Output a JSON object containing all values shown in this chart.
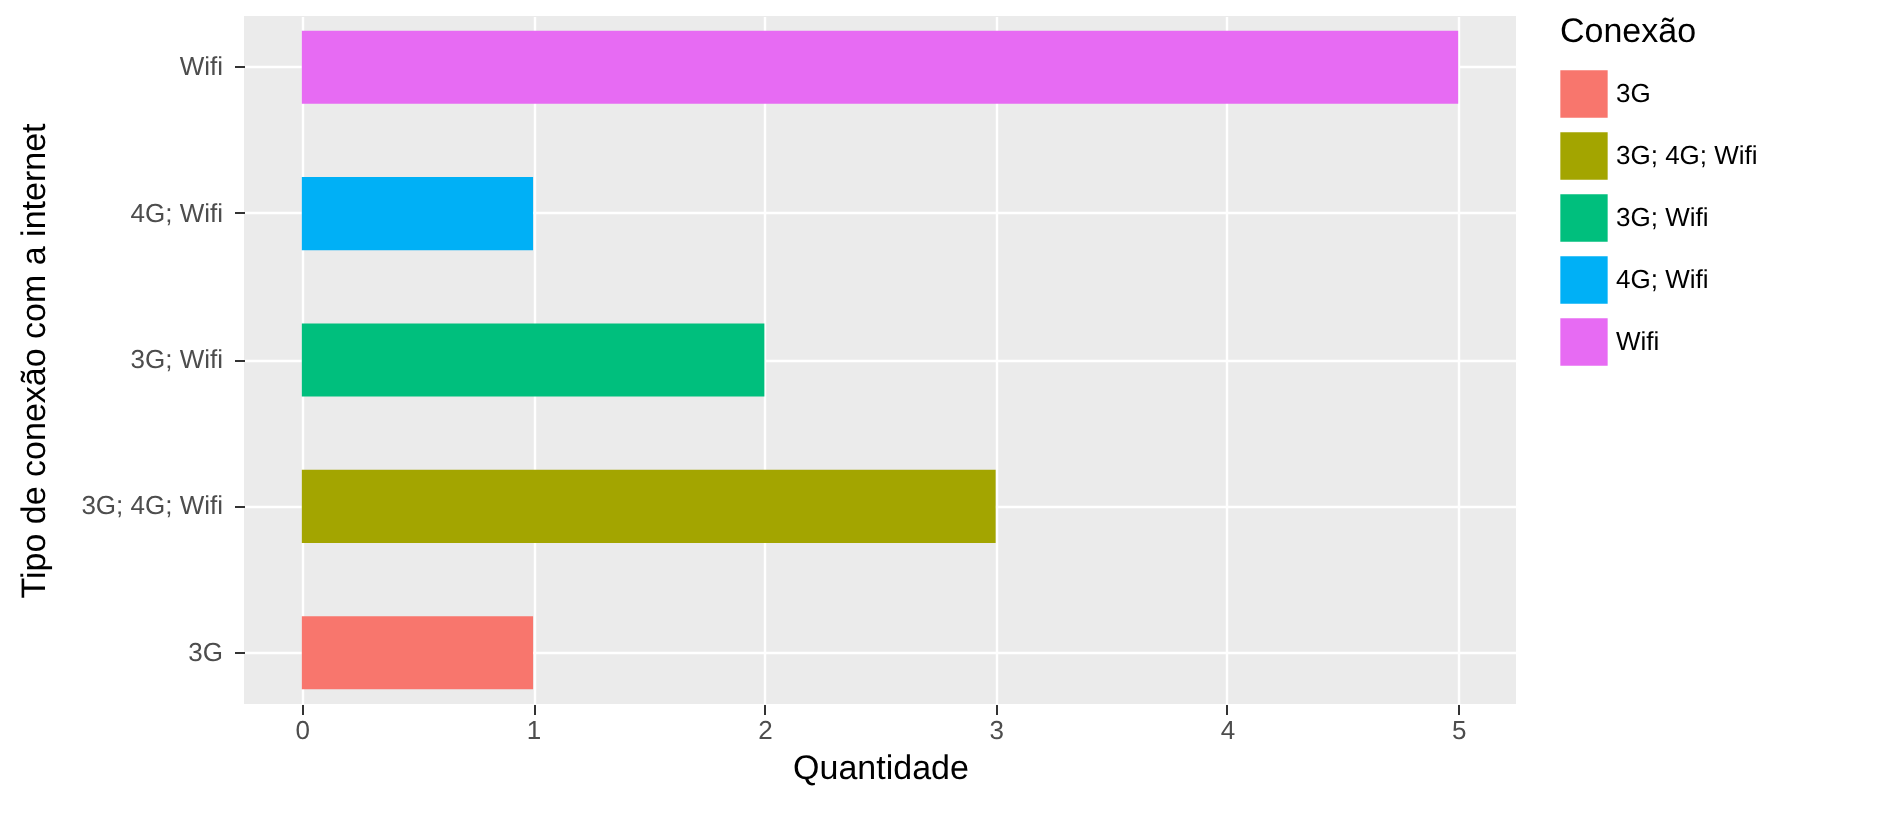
{
  "chart_data": {
    "type": "bar",
    "orientation": "horizontal",
    "stacked": true,
    "xlabel": "Quantidade",
    "ylabel": "Tipo de conexão com a internet",
    "legend_title": "Conexão",
    "categories": [
      "Wifi",
      "4G; Wifi",
      "3G; Wifi",
      "3G; 4G; Wifi",
      "3G"
    ],
    "series": [
      {
        "name": "3G",
        "color": "#f8766d",
        "values": [
          null,
          null,
          null,
          null,
          1
        ]
      },
      {
        "name": "3G; 4G; Wifi",
        "color": "#a3a500",
        "values": [
          null,
          null,
          null,
          3,
          null
        ]
      },
      {
        "name": "3G; Wifi",
        "color": "#00bf7d",
        "values": [
          null,
          null,
          2,
          null,
          null
        ]
      },
      {
        "name": "4G; Wifi",
        "color": "#00b0f6",
        "values": [
          null,
          1,
          null,
          null,
          null
        ]
      },
      {
        "name": "Wifi",
        "color": "#e76bf3",
        "values": [
          5,
          null,
          null,
          null,
          null
        ]
      }
    ],
    "xlim": [
      -0.25,
      5.25
    ],
    "xticks": [
      0,
      1,
      2,
      3,
      4,
      5
    ],
    "grid": true,
    "legend": "right"
  }
}
